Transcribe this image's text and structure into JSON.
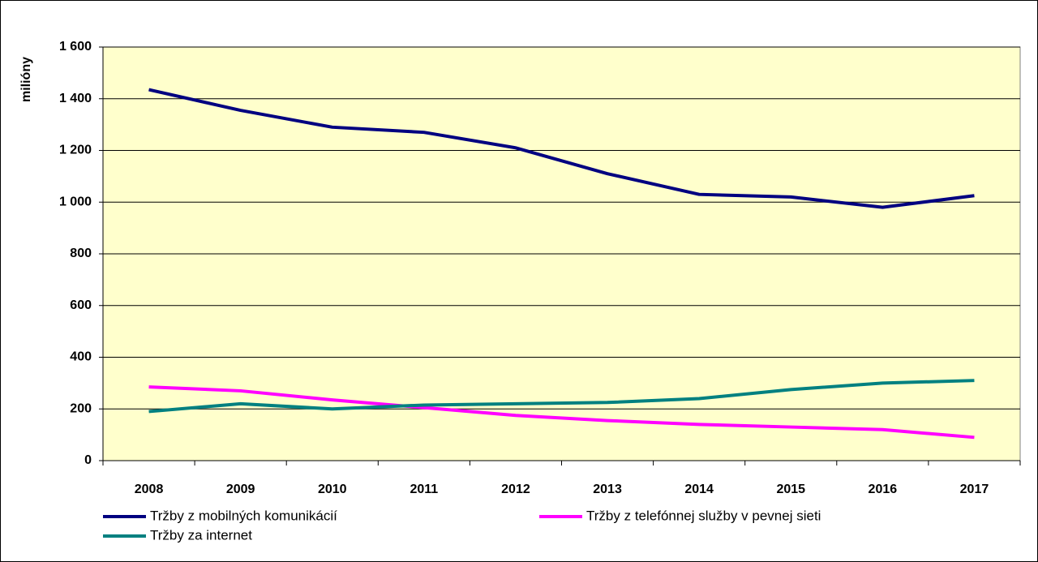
{
  "chart_data": {
    "type": "line",
    "y_label": "milióny",
    "categories": [
      "2008",
      "2009",
      "2010",
      "2011",
      "2012",
      "2013",
      "2014",
      "2015",
      "2016",
      "2017"
    ],
    "series": [
      {
        "name": "Tržby z  mobilných komunikácií",
        "color": "#000080",
        "values": [
          1435,
          1355,
          1290,
          1270,
          1210,
          1110,
          1030,
          1020,
          980,
          1025
        ]
      },
      {
        "name": "Tržby z  telefónnej služby v pevnej sieti",
        "color": "#ff00ff",
        "values": [
          285,
          270,
          235,
          205,
          175,
          155,
          140,
          130,
          120,
          90
        ]
      },
      {
        "name": "Tržby za internet",
        "color": "#008080",
        "values": [
          190,
          220,
          200,
          215,
          220,
          225,
          240,
          275,
          300,
          310
        ]
      }
    ],
    "ylim": [
      0,
      1600
    ],
    "yticks": [
      0,
      200,
      400,
      600,
      800,
      {
        "value": 1000,
        "label": "1 000"
      },
      {
        "value": 1200,
        "label": "1 200"
      },
      {
        "value": 1400,
        "label": "1 400"
      },
      {
        "value": 1600,
        "label": "1 600"
      }
    ],
    "grid": true,
    "plot_background": "#ffffcc"
  }
}
